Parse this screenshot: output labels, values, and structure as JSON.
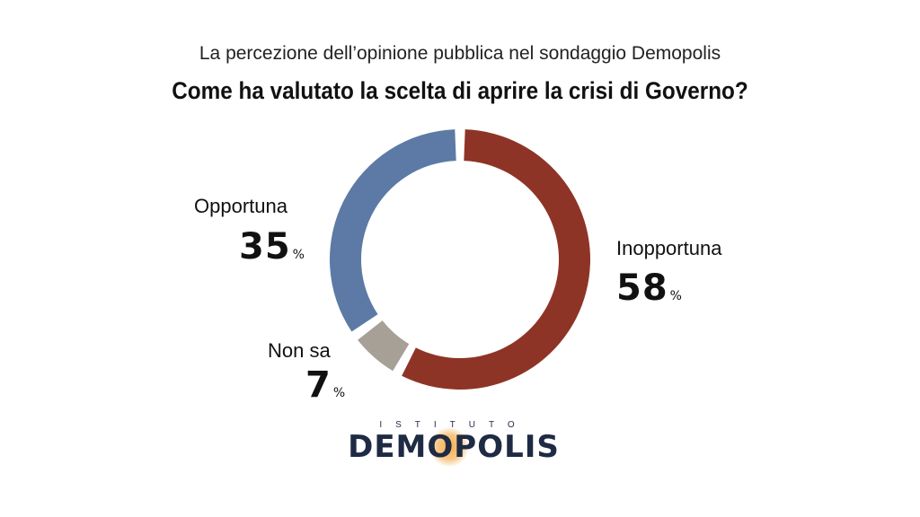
{
  "header": {
    "subtitle": "La percezione dell’opinione pubblica nel sondaggio Demopolis",
    "title": "Come ha valutato la scelta di aprire la crisi di Governo?"
  },
  "chart_data": {
    "type": "pie",
    "variant": "donut",
    "title": "Come ha valutato la scelta di aprire la crisi di Governo?",
    "subtitle": "La percezione dell’opinione pubblica nel sondaggio Demopolis",
    "unit": "%",
    "slices": [
      {
        "label": "Inopportuna",
        "value": 58,
        "color": "#8e3426"
      },
      {
        "label": "Non sa",
        "value": 7,
        "color": "#a7a097"
      },
      {
        "label": "Opportuna",
        "value": 35,
        "color": "#5c7aa5"
      }
    ]
  },
  "labels": {
    "inopportuna": {
      "label": "Inopportuna",
      "value": "58",
      "pct": "%"
    },
    "non_sa": {
      "label": "Non sa",
      "value": "7",
      "pct": "%"
    },
    "opportuna": {
      "label": "Opportuna",
      "value": "35",
      "pct": "%"
    }
  },
  "logo": {
    "top_text": "ISTITUTO",
    "main_text": "DEMOPOLIS"
  }
}
